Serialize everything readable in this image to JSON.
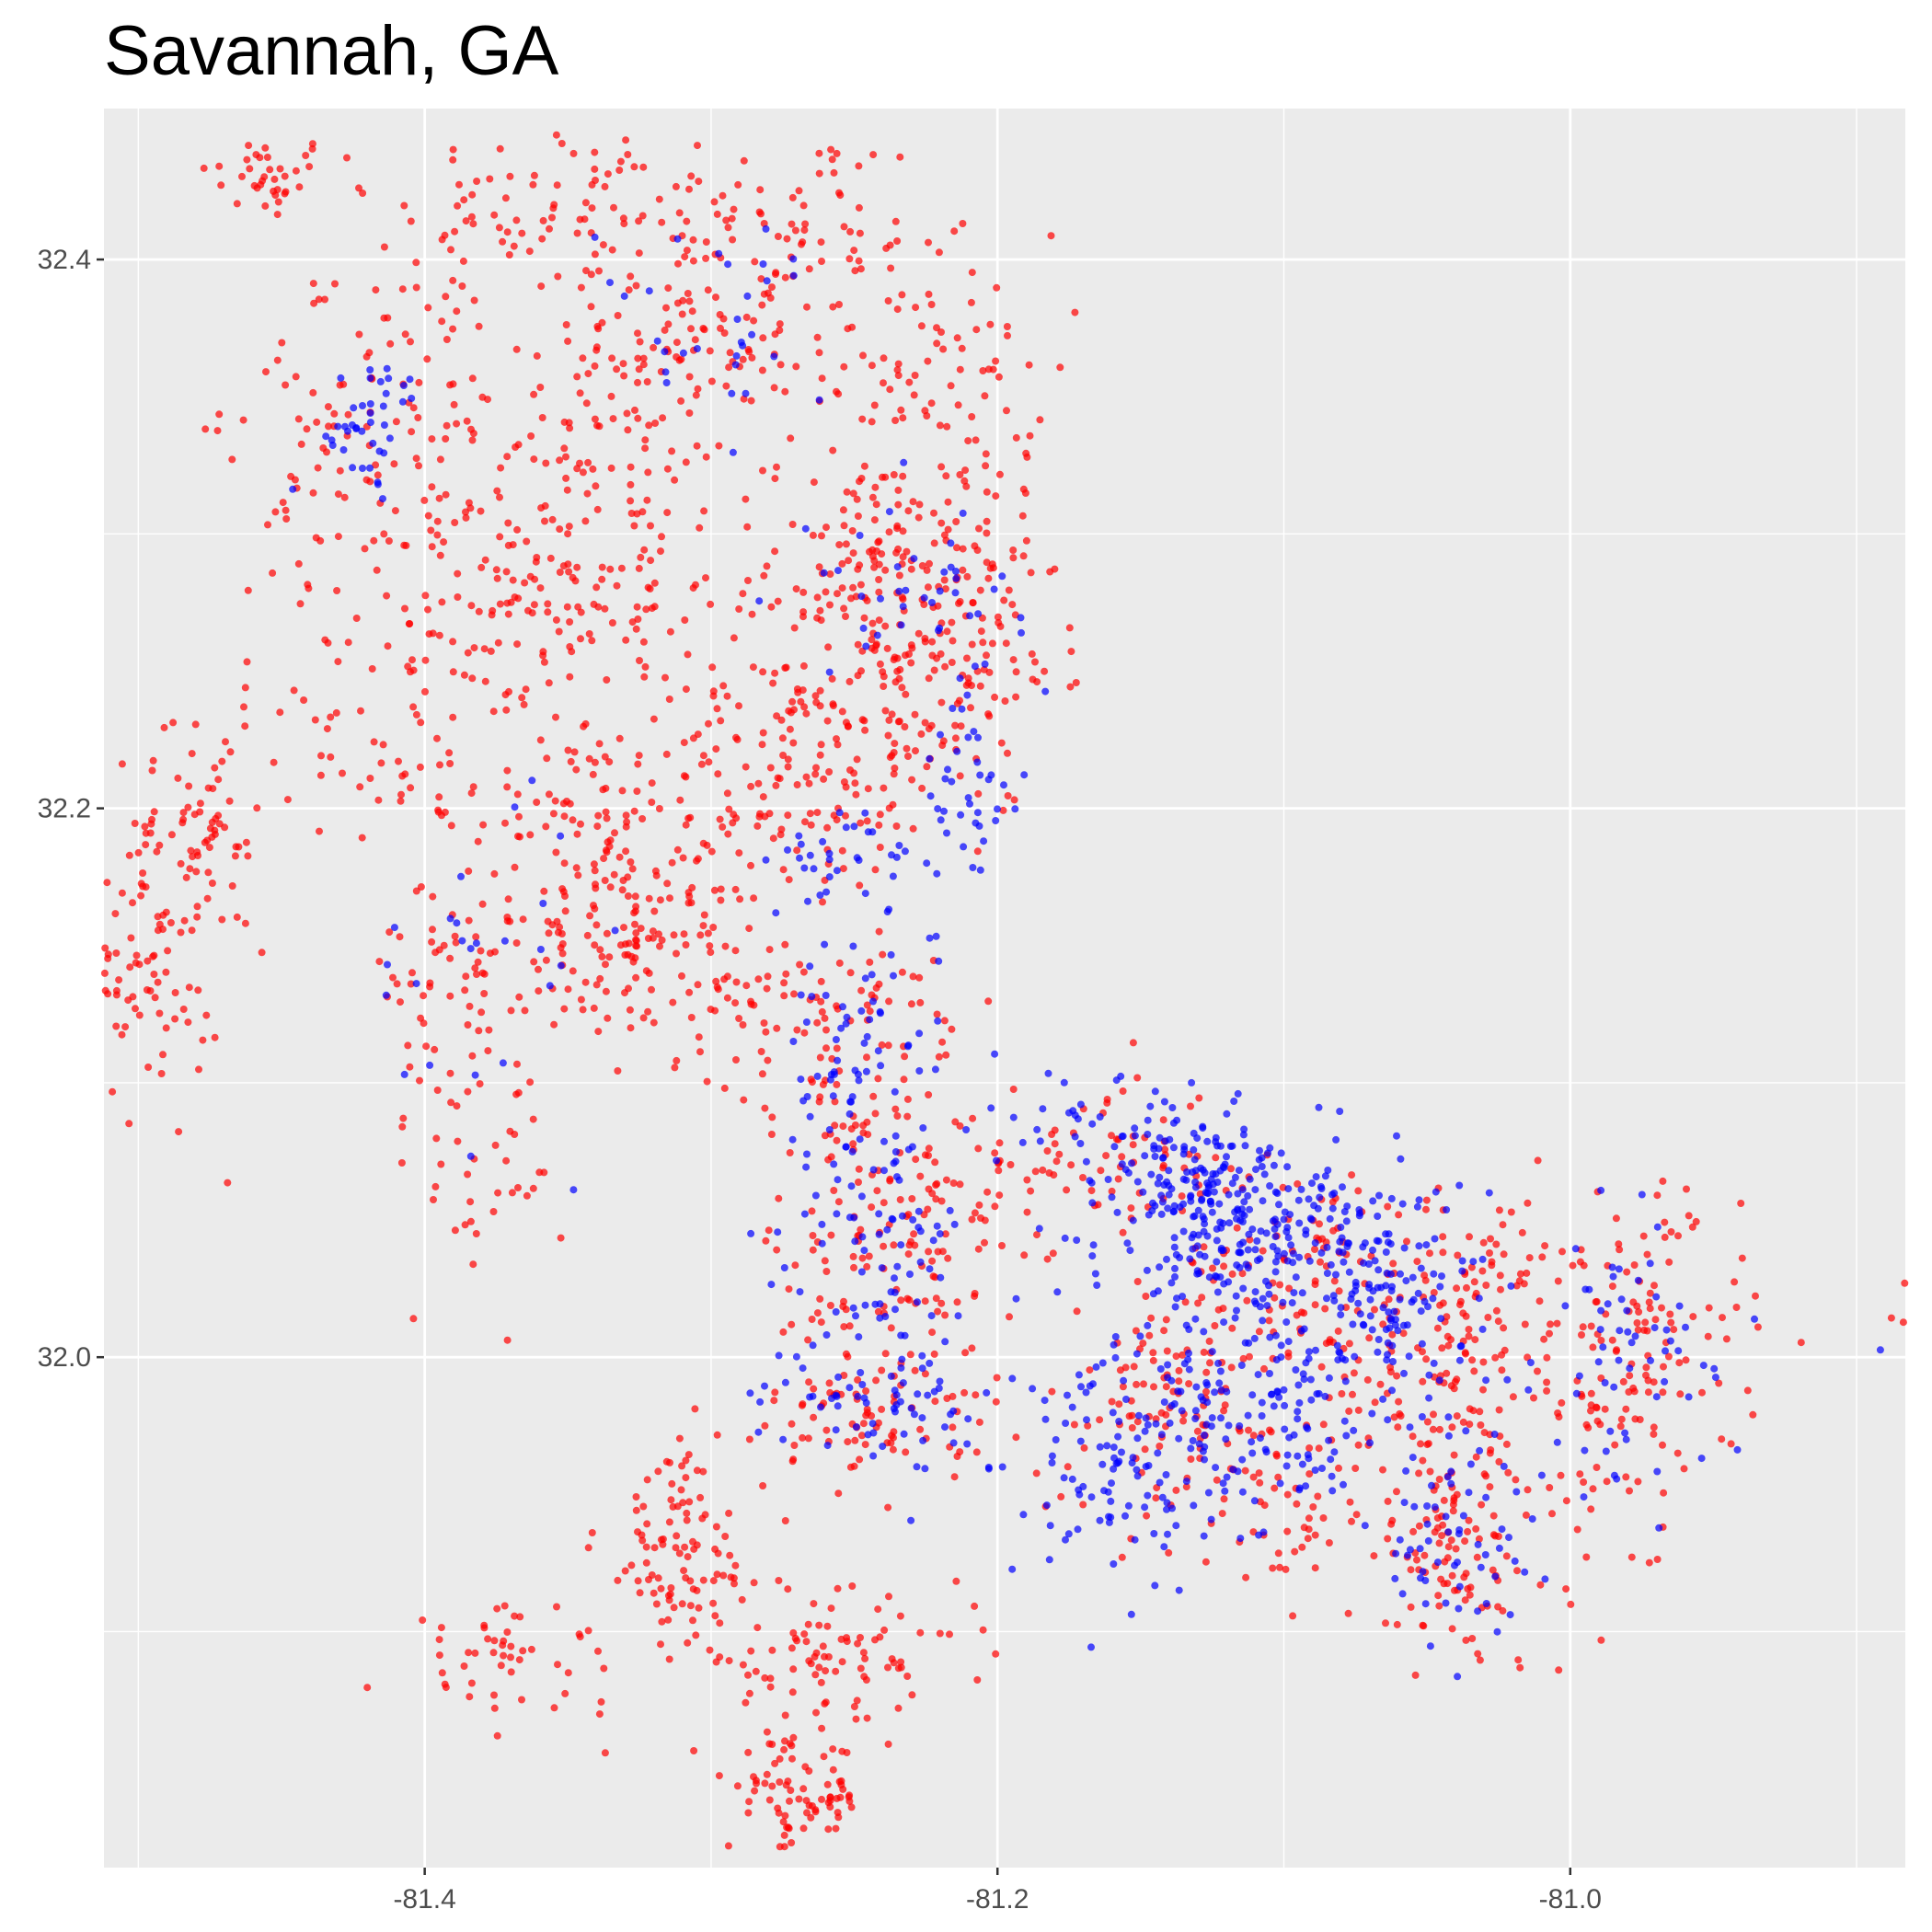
{
  "chart_data": {
    "type": "scatter",
    "title": "Savannah, GA",
    "xlabel": "",
    "ylabel": "",
    "xlim": [
      -81.512,
      -80.883
    ],
    "ylim": [
      31.814,
      32.455
    ],
    "x_ticks": [
      -81.4,
      -81.2,
      -81.0
    ],
    "x_tick_labels": [
      "-81.4",
      "-81.2",
      "-81.0"
    ],
    "y_ticks": [
      32.0,
      32.2,
      32.4
    ],
    "y_tick_labels": [
      "32.0",
      "32.2",
      "32.4"
    ],
    "grid": true,
    "legend": "none",
    "panel_background": "#ebebeb",
    "grid_color": "#ffffff",
    "series": [
      {
        "color": "#ff0000",
        "clusters": [
          {
            "x": -81.455,
            "y": 32.43,
            "sx": 0.012,
            "sy": 0.008,
            "n": 35
          },
          {
            "x": -81.35,
            "y": 32.42,
            "sx": 0.03,
            "sy": 0.015,
            "n": 80
          },
          {
            "x": -81.27,
            "y": 32.41,
            "sx": 0.025,
            "sy": 0.02,
            "n": 70
          },
          {
            "x": -81.31,
            "y": 32.37,
            "sx": 0.02,
            "sy": 0.02,
            "n": 90
          },
          {
            "x": -81.22,
            "y": 32.36,
            "sx": 0.02,
            "sy": 0.025,
            "n": 90
          },
          {
            "x": -81.42,
            "y": 32.35,
            "sx": 0.025,
            "sy": 0.03,
            "n": 80
          },
          {
            "x": -81.33,
            "y": 32.33,
            "sx": 0.03,
            "sy": 0.025,
            "n": 70
          },
          {
            "x": -81.41,
            "y": 32.31,
            "sx": 0.025,
            "sy": 0.03,
            "n": 80
          },
          {
            "x": -81.24,
            "y": 32.29,
            "sx": 0.02,
            "sy": 0.02,
            "n": 120
          },
          {
            "x": -81.33,
            "y": 32.28,
            "sx": 0.02,
            "sy": 0.02,
            "n": 60
          },
          {
            "x": -81.37,
            "y": 32.27,
            "sx": 0.02,
            "sy": 0.025,
            "n": 70
          },
          {
            "x": -81.23,
            "y": 32.25,
            "sx": 0.025,
            "sy": 0.025,
            "n": 150
          },
          {
            "x": -81.27,
            "y": 32.21,
            "sx": 0.025,
            "sy": 0.02,
            "n": 120
          },
          {
            "x": -81.42,
            "y": 32.23,
            "sx": 0.03,
            "sy": 0.02,
            "n": 60
          },
          {
            "x": -81.35,
            "y": 32.2,
            "sx": 0.025,
            "sy": 0.02,
            "n": 70
          },
          {
            "x": -81.32,
            "y": 32.17,
            "sx": 0.02,
            "sy": 0.02,
            "n": 80
          },
          {
            "x": -81.34,
            "y": 32.15,
            "sx": 0.02,
            "sy": 0.015,
            "n": 60
          },
          {
            "x": -81.48,
            "y": 32.19,
            "sx": 0.012,
            "sy": 0.015,
            "n": 50
          },
          {
            "x": -81.5,
            "y": 32.15,
            "sx": 0.015,
            "sy": 0.03,
            "n": 110
          },
          {
            "x": -81.39,
            "y": 32.14,
            "sx": 0.015,
            "sy": 0.02,
            "n": 50
          },
          {
            "x": -81.38,
            "y": 32.08,
            "sx": 0.015,
            "sy": 0.03,
            "n": 50
          },
          {
            "x": -81.28,
            "y": 32.13,
            "sx": 0.03,
            "sy": 0.015,
            "n": 80
          },
          {
            "x": -81.25,
            "y": 32.1,
            "sx": 0.02,
            "sy": 0.025,
            "n": 80
          },
          {
            "x": -81.24,
            "y": 32.03,
            "sx": 0.02,
            "sy": 0.025,
            "n": 90
          },
          {
            "x": -81.21,
            "y": 32.06,
            "sx": 0.02,
            "sy": 0.015,
            "n": 40
          },
          {
            "x": -81.24,
            "y": 31.98,
            "sx": 0.02,
            "sy": 0.012,
            "n": 80
          },
          {
            "x": -81.14,
            "y": 31.98,
            "sx": 0.025,
            "sy": 0.02,
            "n": 110
          },
          {
            "x": -81.09,
            "y": 32.03,
            "sx": 0.025,
            "sy": 0.02,
            "n": 120
          },
          {
            "x": -81.05,
            "y": 31.99,
            "sx": 0.02,
            "sy": 0.02,
            "n": 80
          },
          {
            "x": -81.04,
            "y": 31.93,
            "sx": 0.02,
            "sy": 0.025,
            "n": 120
          },
          {
            "x": -80.98,
            "y": 32.0,
            "sx": 0.02,
            "sy": 0.03,
            "n": 150
          },
          {
            "x": -81.03,
            "y": 32.03,
            "sx": 0.02,
            "sy": 0.015,
            "n": 60
          },
          {
            "x": -81.31,
            "y": 31.93,
            "sx": 0.015,
            "sy": 0.02,
            "n": 100
          },
          {
            "x": -81.26,
            "y": 31.89,
            "sx": 0.025,
            "sy": 0.01,
            "n": 90
          },
          {
            "x": -81.37,
            "y": 31.89,
            "sx": 0.02,
            "sy": 0.01,
            "n": 50
          },
          {
            "x": -81.27,
            "y": 31.84,
            "sx": 0.012,
            "sy": 0.01,
            "n": 80
          },
          {
            "x": -81.16,
            "y": 32.07,
            "sx": 0.02,
            "sy": 0.015,
            "n": 60
          },
          {
            "x": -81.2,
            "y": 32.27,
            "sx": 0.01,
            "sy": 0.025,
            "n": 40
          },
          {
            "x": -81.1,
            "y": 31.94,
            "sx": 0.015,
            "sy": 0.01,
            "n": 40
          },
          {
            "x": -80.88,
            "y": 32.01,
            "sx": 0.005,
            "sy": 0.01,
            "n": 12
          }
        ]
      },
      {
        "color": "#0000ff",
        "clusters": [
          {
            "x": -81.11,
            "y": 32.04,
            "sx": 0.025,
            "sy": 0.02,
            "n": 220
          },
          {
            "x": -81.13,
            "y": 32.06,
            "sx": 0.015,
            "sy": 0.012,
            "n": 100
          },
          {
            "x": -81.06,
            "y": 32.02,
            "sx": 0.015,
            "sy": 0.025,
            "n": 120
          },
          {
            "x": -81.15,
            "y": 32.08,
            "sx": 0.025,
            "sy": 0.012,
            "n": 60
          },
          {
            "x": -81.14,
            "y": 31.97,
            "sx": 0.025,
            "sy": 0.02,
            "n": 120
          },
          {
            "x": -81.1,
            "y": 31.98,
            "sx": 0.02,
            "sy": 0.015,
            "n": 60
          },
          {
            "x": -81.04,
            "y": 31.93,
            "sx": 0.015,
            "sy": 0.02,
            "n": 60
          },
          {
            "x": -80.98,
            "y": 32.0,
            "sx": 0.015,
            "sy": 0.025,
            "n": 60
          },
          {
            "x": -81.25,
            "y": 32.1,
            "sx": 0.015,
            "sy": 0.03,
            "n": 80
          },
          {
            "x": -81.24,
            "y": 32.04,
            "sx": 0.015,
            "sy": 0.02,
            "n": 60
          },
          {
            "x": -81.21,
            "y": 32.2,
            "sx": 0.008,
            "sy": 0.025,
            "n": 40
          },
          {
            "x": -81.25,
            "y": 32.18,
            "sx": 0.015,
            "sy": 0.01,
            "n": 30
          },
          {
            "x": -81.42,
            "y": 32.34,
            "sx": 0.01,
            "sy": 0.012,
            "n": 40
          },
          {
            "x": -81.3,
            "y": 32.38,
            "sx": 0.02,
            "sy": 0.02,
            "n": 30
          },
          {
            "x": -81.23,
            "y": 32.28,
            "sx": 0.02,
            "sy": 0.015,
            "n": 40
          },
          {
            "x": -81.23,
            "y": 31.98,
            "sx": 0.015,
            "sy": 0.01,
            "n": 40
          },
          {
            "x": -81.26,
            "y": 31.99,
            "sx": 0.015,
            "sy": 0.01,
            "n": 25
          },
          {
            "x": -81.38,
            "y": 32.15,
            "sx": 0.02,
            "sy": 0.03,
            "n": 25
          },
          {
            "x": -80.88,
            "y": 32.0,
            "sx": 0.004,
            "sy": 0.008,
            "n": 8
          },
          {
            "x": -81.15,
            "y": 31.95,
            "sx": 0.02,
            "sy": 0.02,
            "n": 40
          }
        ]
      }
    ]
  }
}
